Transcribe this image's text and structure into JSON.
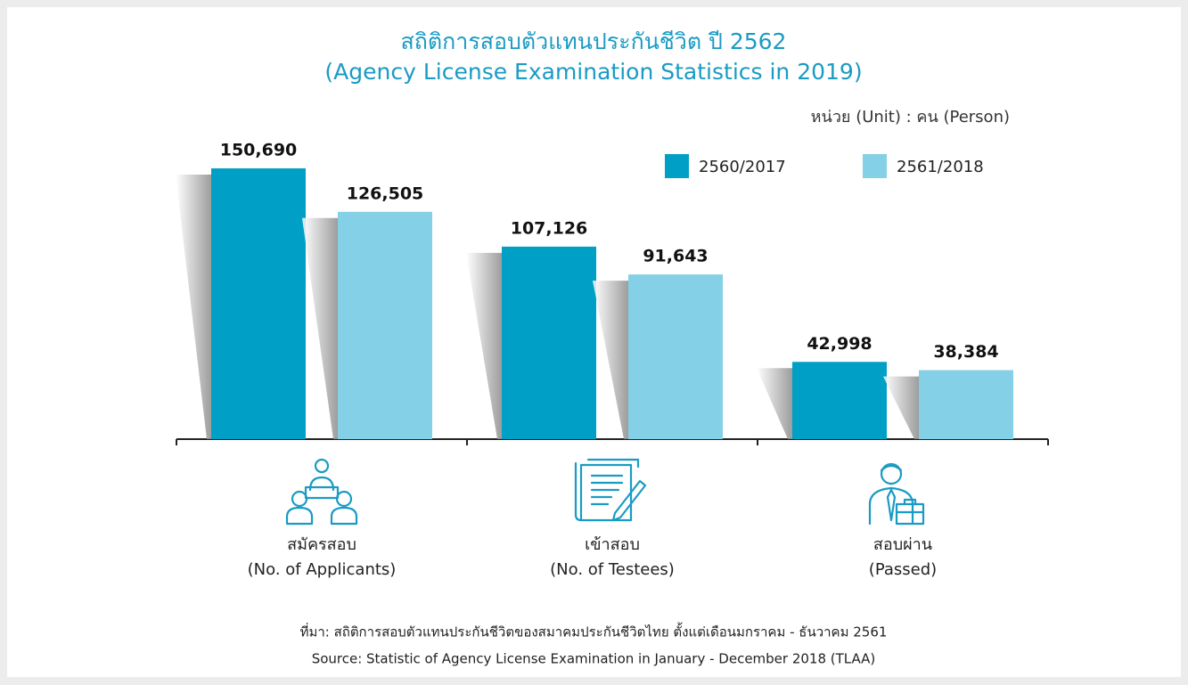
{
  "chart_data": {
    "type": "bar",
    "title": "สถิติการสอบตัวแทนประกันชีวิต ปี 2562",
    "subtitle": "(Agency License Examination Statistics in 2019)",
    "unit_label": "หน่วย (Unit) : คน (Person)",
    "categories": [
      [
        "สมัครสอบ",
        "(No. of Applicants)"
      ],
      [
        "เข้าสอบ",
        "(No. of Testees)"
      ],
      [
        "สอบผ่าน",
        "(Passed)"
      ]
    ],
    "series": [
      {
        "name": "2560/2017",
        "color": "#00a0c6",
        "values": [
          150690,
          107126,
          42998
        ],
        "value_labels": [
          "150,690",
          "107,126",
          "42,998"
        ]
      },
      {
        "name": "2561/2018",
        "color": "#84d0e6",
        "values": [
          126505,
          91643,
          38384
        ],
        "value_labels": [
          "126,505",
          "91,643",
          "38,384"
        ]
      }
    ],
    "source": [
      "ที่มา: สถิติการสอบตัวแทนประกันชีวิตของสมาคมประกันชีวิตไทย ตั้งแต่เดือนมกราคม - ธันวาคม 2561",
      "Source: Statistic of Agency License Examination in January - December 2018 (TLAA)"
    ]
  }
}
